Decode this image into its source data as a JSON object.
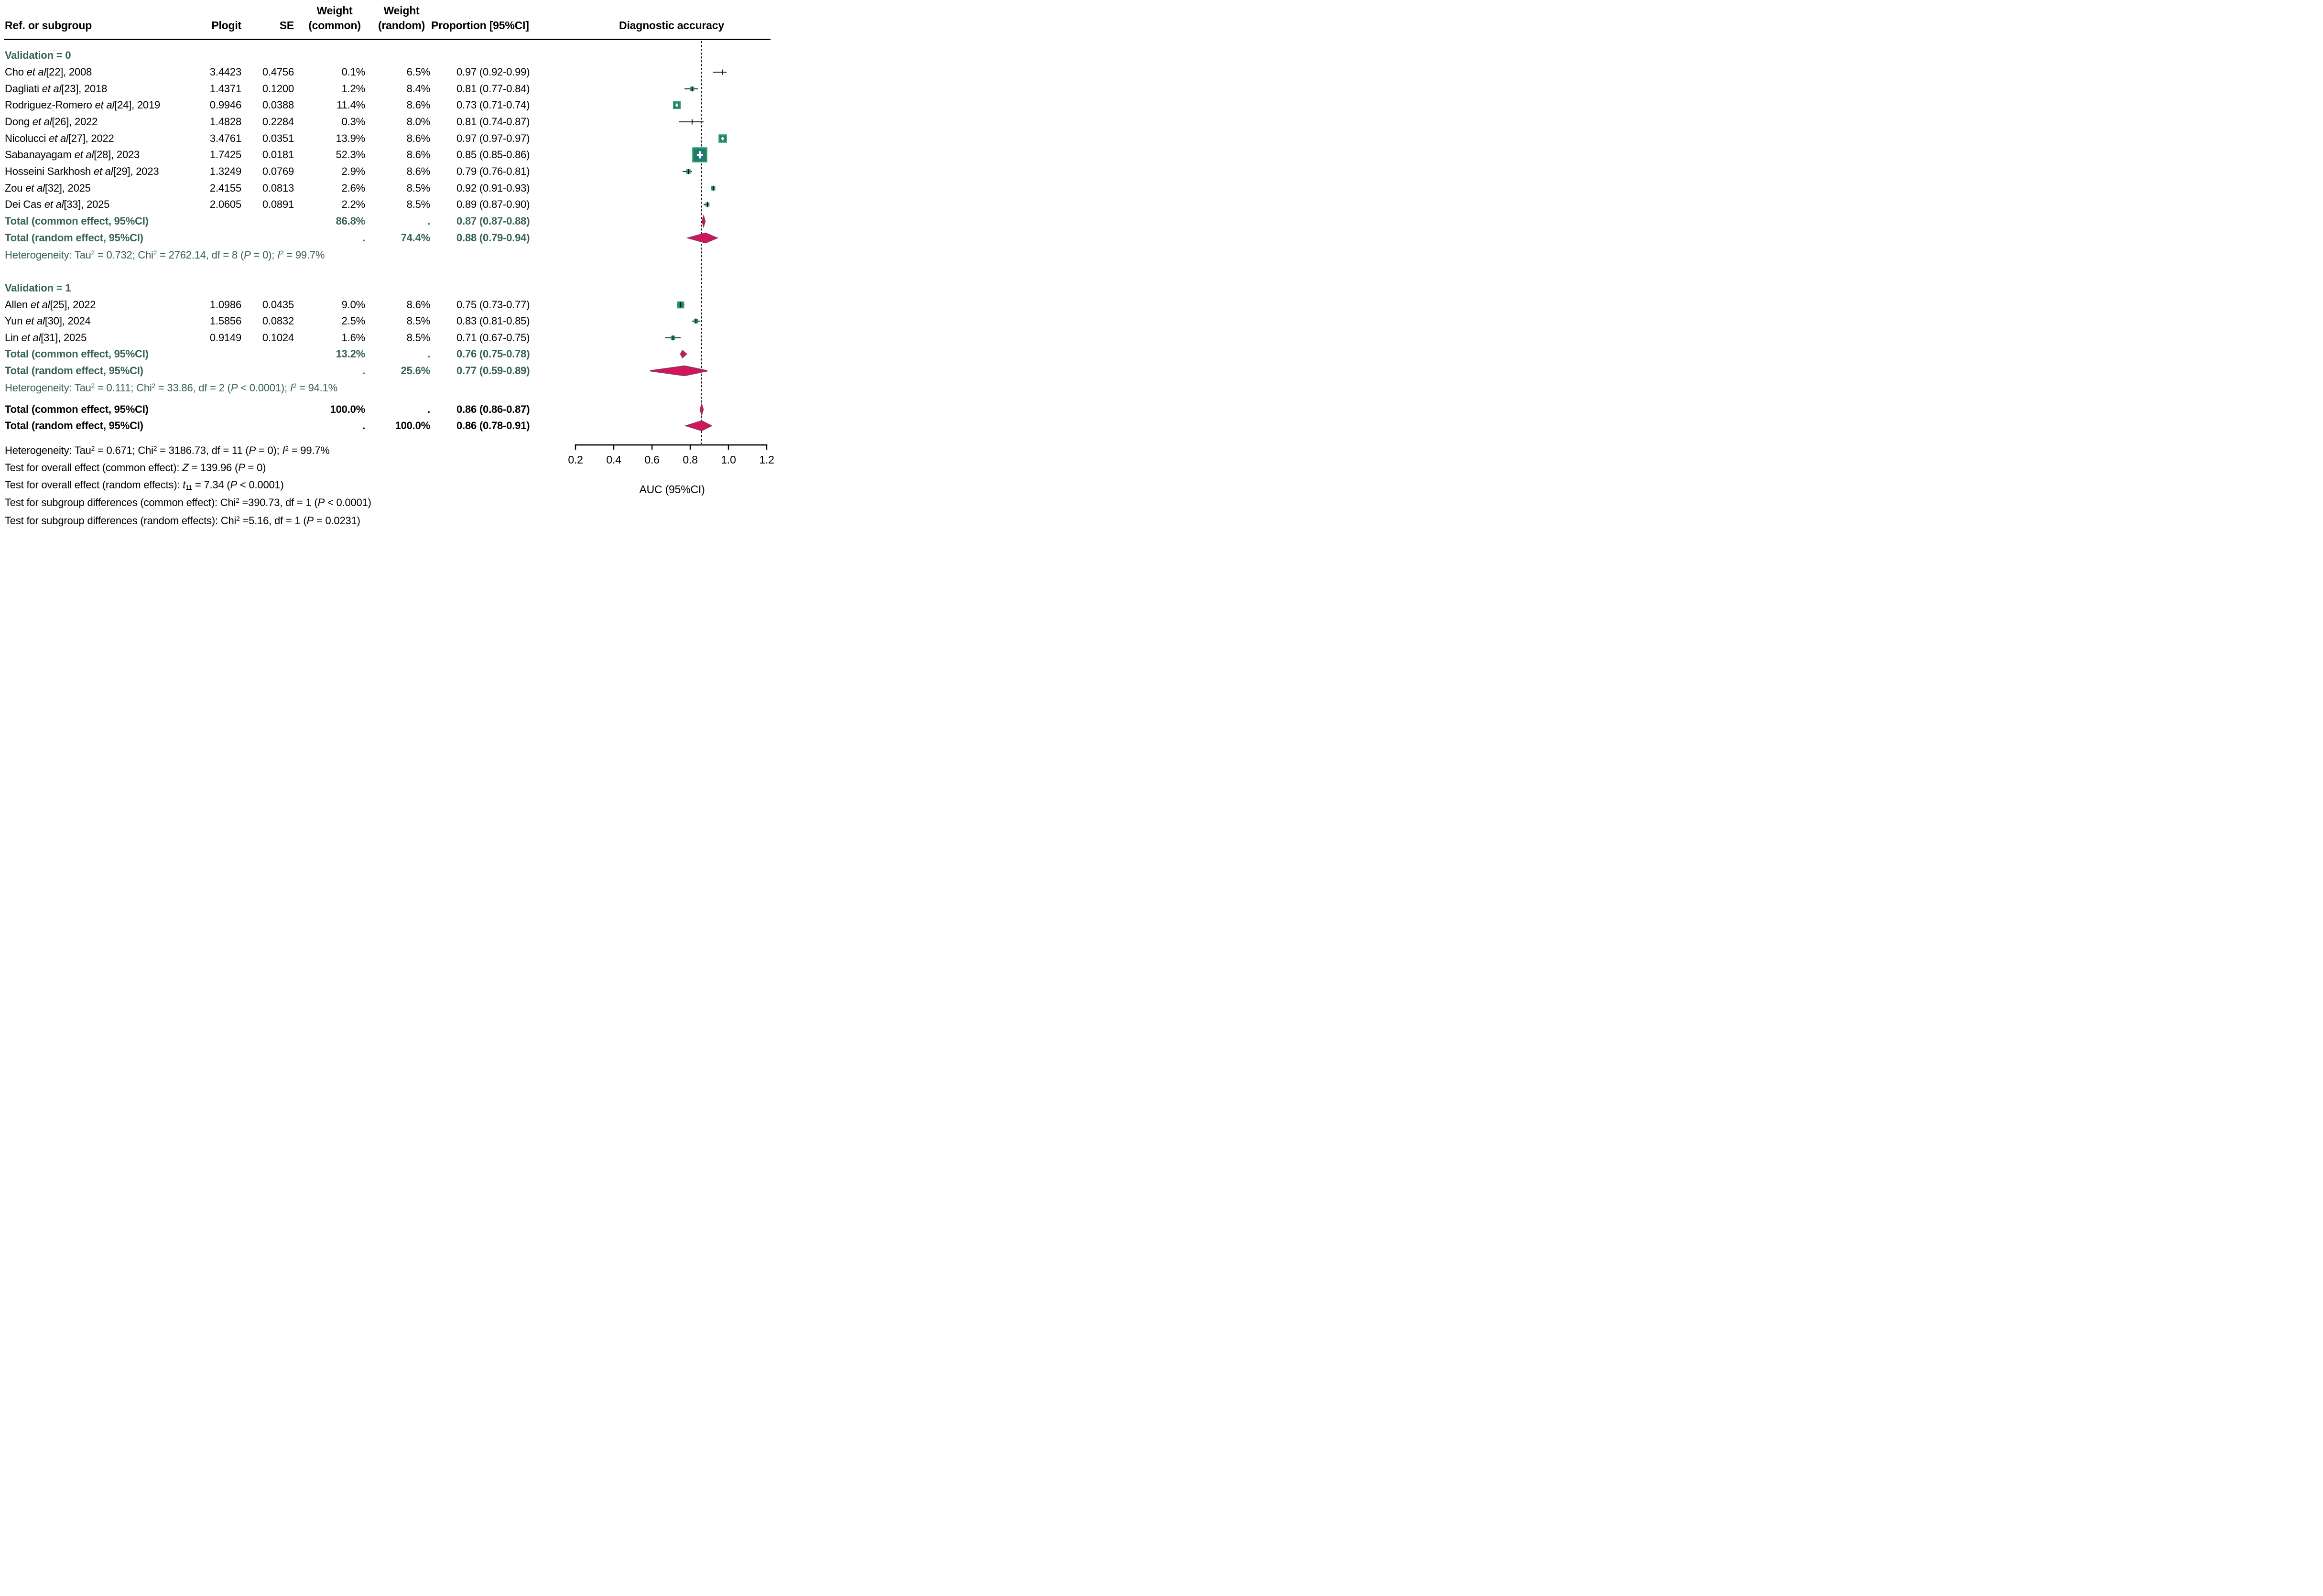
{
  "header": {
    "ref": "Ref. or subgroup",
    "plogit": "Plogit",
    "se": "SE",
    "wc1": "Weight",
    "wc2": "(common)",
    "wr1": "Weight",
    "wr2": "(random)",
    "prop": "Proportion [95%CI]",
    "plot": "Diagnostic accuracy"
  },
  "axis": {
    "ticks": [
      "0.2",
      "0.4",
      "0.6",
      "0.8",
      "1.0",
      "1.2"
    ],
    "label": "AUC (95%CI)"
  },
  "colors": {
    "teal_text": "#35605a",
    "square_fill": "#1e7a76",
    "square_border": "#2f9e62",
    "diamond_fill": "#d5145c",
    "diamond_border": "#9c2f5c",
    "line": "#000000"
  },
  "chart_data": {
    "type": "scatter",
    "subtype": "forest-plot",
    "xlabel": "AUC (95%CI)",
    "x_ticks": [
      0.2,
      0.4,
      0.6,
      0.8,
      1.0,
      1.2
    ],
    "x_range": [
      0.2,
      1.2
    ],
    "ref_line": 0.857,
    "groups": [
      {
        "label": "Validation = 0",
        "studies": [
          {
            "pre": "Cho ",
            "it": "et al",
            "suf": "[22], 2008",
            "plogit": "3.4423",
            "se": "0.4756",
            "wc": "0.1%",
            "wr": "6.5%",
            "prop": "0.97 (0.92-0.99)",
            "est": 0.97,
            "lo": 0.92,
            "hi": 0.99,
            "w": 0.1
          },
          {
            "pre": "Dagliati ",
            "it": "et al",
            "suf": "[23], 2018",
            "plogit": "1.4371",
            "se": "0.1200",
            "wc": "1.2%",
            "wr": "8.4%",
            "prop": "0.81 (0.77-0.84)",
            "est": 0.81,
            "lo": 0.77,
            "hi": 0.84,
            "w": 1.2
          },
          {
            "pre": "Rodriguez-Romero ",
            "it": "et al",
            "suf": "[24], 2019",
            "plogit": "0.9946",
            "se": "0.0388",
            "wc": "11.4%",
            "wr": "8.6%",
            "prop": "0.73 (0.71-0.74)",
            "est": 0.73,
            "lo": 0.71,
            "hi": 0.74,
            "w": 11.4
          },
          {
            "pre": "Dong ",
            "it": "et al",
            "suf": "[26], 2022",
            "plogit": "1.4828",
            "se": "0.2284",
            "wc": "0.3%",
            "wr": "8.0%",
            "prop": "0.81 (0.74-0.87)",
            "est": 0.81,
            "lo": 0.74,
            "hi": 0.87,
            "w": 0.3
          },
          {
            "pre": "Nicolucci ",
            "it": "et al",
            "suf": "[27], 2022",
            "plogit": "3.4761",
            "se": "0.0351",
            "wc": "13.9%",
            "wr": "8.6%",
            "prop": "0.97 (0.97-0.97)",
            "est": 0.97,
            "lo": 0.97,
            "hi": 0.97,
            "w": 13.9
          },
          {
            "pre": "Sabanayagam ",
            "it": "et al",
            "suf": "[28], 2023",
            "plogit": "1.7425",
            "se": "0.0181",
            "wc": "52.3%",
            "wr": "8.6%",
            "prop": "0.85 (0.85-0.86)",
            "est": 0.85,
            "lo": 0.85,
            "hi": 0.86,
            "w": 52.3
          },
          {
            "pre": "Hosseini Sarkhosh ",
            "it": "et al",
            "suf": "[29], 2023",
            "plogit": "1.3249",
            "se": "0.0769",
            "wc": "2.9%",
            "wr": "8.6%",
            "prop": "0.79 (0.76-0.81)",
            "est": 0.79,
            "lo": 0.76,
            "hi": 0.81,
            "w": 2.9
          },
          {
            "pre": "Zou ",
            "it": "et al",
            "suf": "[32], 2025",
            "plogit": "2.4155",
            "se": "0.0813",
            "wc": "2.6%",
            "wr": "8.5%",
            "prop": "0.92 (0.91-0.93)",
            "est": 0.92,
            "lo": 0.91,
            "hi": 0.93,
            "w": 2.6
          },
          {
            "pre": "Dei Cas ",
            "it": "et al",
            "suf": "[33], 2025",
            "plogit": "2.0605",
            "se": "0.0891",
            "wc": "2.2%",
            "wr": "8.5%",
            "prop": "0.89 (0.87-0.90)",
            "est": 0.89,
            "lo": 0.87,
            "hi": 0.9,
            "w": 2.2
          }
        ],
        "total_common": {
          "label": "Total (common effect, 95%CI)",
          "wc": "86.8%",
          "wr": ".",
          "prop": "0.87 (0.87-0.88)",
          "est": 0.87,
          "lo": 0.87,
          "hi": 0.88
        },
        "total_random": {
          "label": "Total (random effect, 95%CI)",
          "wc": ".",
          "wr": "74.4%",
          "prop": "0.88 (0.79-0.94)",
          "est": 0.88,
          "lo": 0.79,
          "hi": 0.94
        },
        "het": [
          {
            "t": "Heterogeneity: Tau"
          },
          {
            "t": "2",
            "s": "sup"
          },
          {
            "t": " = 0.732; Chi"
          },
          {
            "t": "2",
            "s": "sup"
          },
          {
            "t": " = 2762.14, df = 8 ("
          },
          {
            "t": "P",
            "s": "i"
          },
          {
            "t": " = 0); "
          },
          {
            "t": "I",
            "s": "i"
          },
          {
            "t": "2",
            "s": "sup"
          },
          {
            "t": " = 99.7%"
          }
        ]
      },
      {
        "label": "Validation = 1",
        "studies": [
          {
            "pre": "Allen ",
            "it": "et al",
            "suf": "[25], 2022",
            "plogit": "1.0986",
            "se": "0.0435",
            "wc": "9.0%",
            "wr": "8.6%",
            "prop": "0.75 (0.73-0.77)",
            "est": 0.75,
            "lo": 0.73,
            "hi": 0.77,
            "w": 9.0
          },
          {
            "pre": "Yun ",
            "it": "et al",
            "suf": "[30], 2024",
            "plogit": "1.5856",
            "se": "0.0832",
            "wc": "2.5%",
            "wr": "8.5%",
            "prop": "0.83 (0.81-0.85)",
            "est": 0.83,
            "lo": 0.81,
            "hi": 0.85,
            "w": 2.5
          },
          {
            "pre": "Lin ",
            "it": "et al",
            "suf": "[31], 2025",
            "plogit": "0.9149",
            "se": "0.1024",
            "wc": "1.6%",
            "wr": "8.5%",
            "prop": "0.71 (0.67-0.75)",
            "est": 0.71,
            "lo": 0.67,
            "hi": 0.75,
            "w": 1.6
          }
        ],
        "total_common": {
          "label": "Total (common effect, 95%CI)",
          "wc": "13.2%",
          "wr": ".",
          "prop": "0.76 (0.75-0.78)",
          "est": 0.76,
          "lo": 0.75,
          "hi": 0.78
        },
        "total_random": {
          "label": "Total (random effect, 95%CI)",
          "wc": ".",
          "wr": "25.6%",
          "prop": "0.77 (0.59-0.89)",
          "est": 0.77,
          "lo": 0.59,
          "hi": 0.89
        },
        "het": [
          {
            "t": "Heterogeneity: Tau"
          },
          {
            "t": "2",
            "s": "sup"
          },
          {
            "t": " = 0.111; Chi"
          },
          {
            "t": "2",
            "s": "sup"
          },
          {
            "t": " = 33.86, df = 2 ("
          },
          {
            "t": "P",
            "s": "i"
          },
          {
            "t": " < 0.0001); "
          },
          {
            "t": "I",
            "s": "i"
          },
          {
            "t": "2",
            "s": "sup"
          },
          {
            "t": " = 94.1%"
          }
        ]
      }
    ],
    "overall": {
      "common": {
        "label": "Total (common effect, 95%CI)",
        "wc": "100.0%",
        "wr": ".",
        "prop": "0.86 (0.86-0.87)",
        "est": 0.86,
        "lo": 0.86,
        "hi": 0.87
      },
      "random": {
        "label": "Total (random effect, 95%CI)",
        "wc": ".",
        "wr": "100.0%",
        "prop": "0.86 (0.78-0.91)",
        "est": 0.86,
        "lo": 0.78,
        "hi": 0.91
      }
    },
    "footer": [
      [
        {
          "t": "Heterogeneity: Tau"
        },
        {
          "t": "2",
          "s": "sup"
        },
        {
          "t": " = 0.671; Chi"
        },
        {
          "t": "2",
          "s": "sup"
        },
        {
          "t": " = 3186.73, df = 11 ("
        },
        {
          "t": "P",
          "s": "i"
        },
        {
          "t": " = 0); "
        },
        {
          "t": "I",
          "s": "i"
        },
        {
          "t": "2",
          "s": "sup"
        },
        {
          "t": " = 99.7%"
        }
      ],
      [
        {
          "t": "Test for overall effect (common effect): "
        },
        {
          "t": "Z",
          "s": "i"
        },
        {
          "t": " = 139.96 ("
        },
        {
          "t": "P",
          "s": "i"
        },
        {
          "t": " = 0)"
        }
      ],
      [
        {
          "t": "Test for overall effect (random effects): "
        },
        {
          "t": "t",
          "s": "i"
        },
        {
          "t": "11",
          "s": "sub"
        },
        {
          "t": " = 7.34 ("
        },
        {
          "t": "P",
          "s": "i"
        },
        {
          "t": " < 0.0001)"
        }
      ],
      [
        {
          "t": "Test for subgroup differences (common effect): Chi"
        },
        {
          "t": "2",
          "s": "sup"
        },
        {
          "t": " =390.73, df = 1 ("
        },
        {
          "t": "P",
          "s": "i"
        },
        {
          "t": " < 0.0001)"
        }
      ],
      [
        {
          "t": "Test for subgroup differences (random effects): Chi"
        },
        {
          "t": "2",
          "s": "sup"
        },
        {
          "t": " =5.16, df = 1 ("
        },
        {
          "t": "P",
          "s": "i"
        },
        {
          "t": " = 0.0231)"
        }
      ]
    ]
  }
}
